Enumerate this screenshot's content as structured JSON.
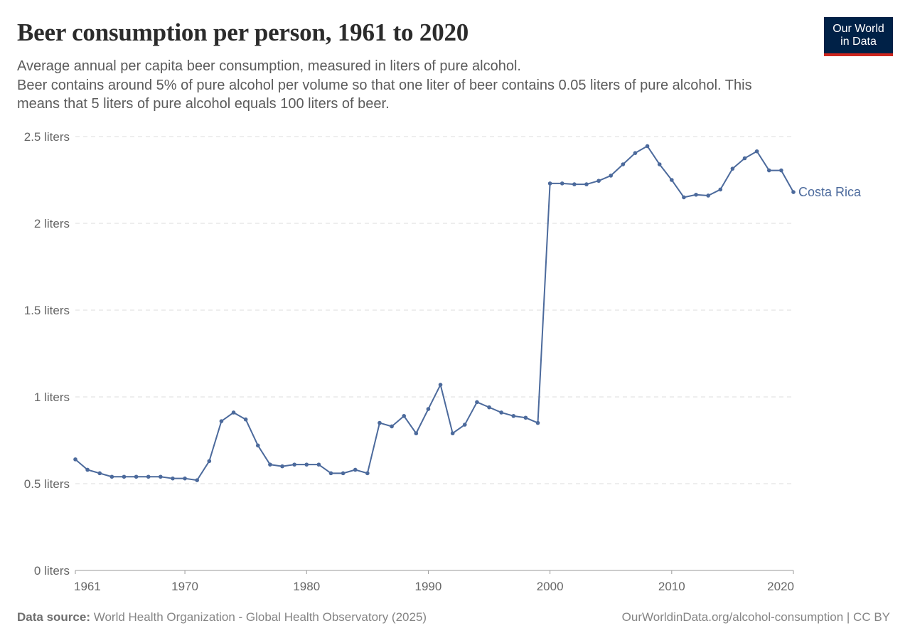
{
  "header": {
    "title": "Beer consumption per person, 1961 to 2020",
    "subtitle_line1": "Average annual per capita beer consumption, measured in liters of pure alcohol.",
    "subtitle_line2": "Beer contains around 5% of pure alcohol per volume so that one liter of beer contains 0.05 liters of pure alcohol. This means that 5 liters of pure alcohol equals 100 liters of beer."
  },
  "logo": {
    "line1": "Our World",
    "line2": "in Data",
    "bg_color": "#002147",
    "accent_color": "#ce261e"
  },
  "footer": {
    "source_label": "Data source:",
    "source_text": "World Health Organization - Global Health Observatory (2025)",
    "url_text": "OurWorldinData.org/alcohol-consumption | CC BY"
  },
  "chart_data": {
    "type": "line",
    "title": "Beer consumption per person, 1961 to 2020",
    "xlabel": "",
    "ylabel": "",
    "xlim": [
      1961,
      2020
    ],
    "ylim": [
      0,
      2.5
    ],
    "x_ticks": [
      1961,
      1970,
      1980,
      1990,
      2000,
      2010,
      2020
    ],
    "y_ticks": [
      {
        "value": 0,
        "label": "0 liters"
      },
      {
        "value": 0.5,
        "label": "0.5 liters"
      },
      {
        "value": 1,
        "label": "1 liters"
      },
      {
        "value": 1.5,
        "label": "1.5 liters"
      },
      {
        "value": 2,
        "label": "2 liters"
      },
      {
        "value": 2.5,
        "label": "2.5 liters"
      }
    ],
    "grid": "horizontal-dashed",
    "series": [
      {
        "name": "Costa Rica",
        "color": "#4c6a9c",
        "x": [
          1961,
          1962,
          1963,
          1964,
          1965,
          1966,
          1967,
          1968,
          1969,
          1970,
          1971,
          1972,
          1973,
          1974,
          1975,
          1976,
          1977,
          1978,
          1979,
          1980,
          1981,
          1982,
          1983,
          1984,
          1985,
          1986,
          1987,
          1988,
          1989,
          1990,
          1991,
          1992,
          1993,
          1994,
          1995,
          1996,
          1997,
          1998,
          1999,
          2000,
          2001,
          2002,
          2003,
          2004,
          2005,
          2006,
          2007,
          2008,
          2009,
          2010,
          2011,
          2012,
          2013,
          2014,
          2015,
          2016,
          2017,
          2018,
          2019,
          2020
        ],
        "y": [
          0.64,
          0.58,
          0.56,
          0.54,
          0.54,
          0.54,
          0.54,
          0.54,
          0.53,
          0.53,
          0.52,
          0.63,
          0.86,
          0.91,
          0.87,
          0.72,
          0.61,
          0.6,
          0.61,
          0.61,
          0.61,
          0.56,
          0.56,
          0.58,
          0.56,
          0.85,
          0.83,
          0.89,
          0.79,
          0.93,
          1.07,
          0.79,
          0.84,
          0.97,
          0.94,
          0.91,
          0.89,
          0.88,
          0.85,
          2.23,
          2.23,
          2.225,
          2.225,
          2.245,
          2.275,
          2.34,
          2.405,
          2.445,
          2.34,
          2.25,
          2.15,
          2.165,
          2.16,
          2.195,
          2.315,
          2.375,
          2.415,
          2.305,
          2.305,
          2.18
        ]
      }
    ]
  }
}
